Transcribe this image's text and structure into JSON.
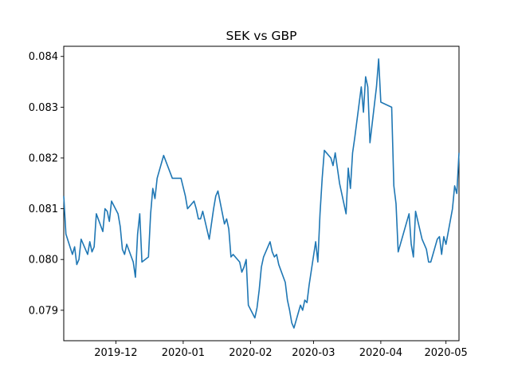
{
  "chart_data": {
    "type": "line",
    "title": "SEK vs GBP",
    "xlabel": "",
    "ylabel": "",
    "x_range": [
      "2019-11-07",
      "2020-05-07"
    ],
    "ylim": [
      0.0784,
      0.0842
    ],
    "grid": false,
    "line_color": "#1f77b4",
    "x_ticks": [
      {
        "date": "2019-12-01",
        "label": "2019-12"
      },
      {
        "date": "2020-01-01",
        "label": "2020-01"
      },
      {
        "date": "2020-02-01",
        "label": "2020-02"
      },
      {
        "date": "2020-03-01",
        "label": "2020-03"
      },
      {
        "date": "2020-04-01",
        "label": "2020-04"
      },
      {
        "date": "2020-05-01",
        "label": "2020-05"
      }
    ],
    "y_ticks": [
      {
        "value": 0.079,
        "label": "0.079"
      },
      {
        "value": 0.08,
        "label": "0.080"
      },
      {
        "value": 0.081,
        "label": "0.081"
      },
      {
        "value": 0.082,
        "label": "0.082"
      },
      {
        "value": 0.083,
        "label": "0.083"
      },
      {
        "value": 0.084,
        "label": "0.084"
      }
    ],
    "series": [
      {
        "name": "",
        "x": [
          "2019-11-07",
          "2019-11-08",
          "2019-11-11",
          "2019-11-12",
          "2019-11-13",
          "2019-11-14",
          "2019-11-15",
          "2019-11-18",
          "2019-11-19",
          "2019-11-20",
          "2019-11-21",
          "2019-11-22",
          "2019-11-25",
          "2019-11-26",
          "2019-11-27",
          "2019-11-28",
          "2019-11-29",
          "2019-12-02",
          "2019-12-03",
          "2019-12-04",
          "2019-12-05",
          "2019-12-06",
          "2019-12-09",
          "2019-12-10",
          "2019-12-11",
          "2019-12-12",
          "2019-12-13",
          "2019-12-16",
          "2019-12-17",
          "2019-12-18",
          "2019-12-19",
          "2019-12-20",
          "2019-12-23",
          "2019-12-27",
          "2019-12-30",
          "2019-12-31",
          "2020-01-02",
          "2020-01-03",
          "2020-01-06",
          "2020-01-07",
          "2020-01-08",
          "2020-01-09",
          "2020-01-10",
          "2020-01-13",
          "2020-01-14",
          "2020-01-15",
          "2020-01-16",
          "2020-01-17",
          "2020-01-20",
          "2020-01-21",
          "2020-01-22",
          "2020-01-23",
          "2020-01-24",
          "2020-01-27",
          "2020-01-28",
          "2020-01-29",
          "2020-01-30",
          "2020-01-31",
          "2020-02-03",
          "2020-02-04",
          "2020-02-05",
          "2020-02-06",
          "2020-02-07",
          "2020-02-10",
          "2020-02-11",
          "2020-02-12",
          "2020-02-13",
          "2020-02-14",
          "2020-02-17",
          "2020-02-18",
          "2020-02-19",
          "2020-02-20",
          "2020-02-21",
          "2020-02-24",
          "2020-02-25",
          "2020-02-26",
          "2020-02-27",
          "2020-02-28",
          "2020-03-02",
          "2020-03-03",
          "2020-03-04",
          "2020-03-05",
          "2020-03-06",
          "2020-03-09",
          "2020-03-10",
          "2020-03-11",
          "2020-03-12",
          "2020-03-13",
          "2020-03-16",
          "2020-03-17",
          "2020-03-18",
          "2020-03-19",
          "2020-03-20",
          "2020-03-23",
          "2020-03-24",
          "2020-03-25",
          "2020-03-26",
          "2020-03-27",
          "2020-03-30",
          "2020-03-31",
          "2020-04-01",
          "2020-04-06",
          "2020-04-07",
          "2020-04-08",
          "2020-04-09",
          "2020-04-14",
          "2020-04-15",
          "2020-04-16",
          "2020-04-17",
          "2020-04-20",
          "2020-04-21",
          "2020-04-22",
          "2020-04-23",
          "2020-04-24",
          "2020-04-27",
          "2020-04-28",
          "2020-04-29",
          "2020-04-30",
          "2020-05-01",
          "2020-05-04",
          "2020-05-05",
          "2020-05-06",
          "2020-05-07"
        ],
        "y": [
          0.08125,
          0.0805,
          0.0801,
          0.08025,
          0.0799,
          0.08,
          0.0804,
          0.0801,
          0.08035,
          0.08015,
          0.08025,
          0.0809,
          0.08055,
          0.081,
          0.08095,
          0.08075,
          0.08115,
          0.0809,
          0.08065,
          0.0802,
          0.0801,
          0.0803,
          0.07995,
          0.07965,
          0.0805,
          0.0809,
          0.07995,
          0.08005,
          0.0809,
          0.0814,
          0.0812,
          0.0816,
          0.08205,
          0.0816,
          0.0816,
          0.0816,
          0.08125,
          0.081,
          0.08115,
          0.081,
          0.0808,
          0.0808,
          0.08095,
          0.0804,
          0.0807,
          0.081,
          0.08125,
          0.08135,
          0.0807,
          0.0808,
          0.0806,
          0.08005,
          0.0801,
          0.07995,
          0.07975,
          0.07985,
          0.08,
          0.0791,
          0.07885,
          0.07905,
          0.0794,
          0.07985,
          0.08005,
          0.08035,
          0.08015,
          0.08005,
          0.0801,
          0.0799,
          0.07955,
          0.0792,
          0.079,
          0.07875,
          0.07865,
          0.0791,
          0.079,
          0.0792,
          0.07915,
          0.0795,
          0.08035,
          0.07995,
          0.0809,
          0.0816,
          0.08215,
          0.082,
          0.08185,
          0.0821,
          0.0818,
          0.0815,
          0.0809,
          0.0818,
          0.0814,
          0.0821,
          0.0824,
          0.0834,
          0.0829,
          0.0836,
          0.0834,
          0.0823,
          0.0834,
          0.08395,
          0.0831,
          0.083,
          0.08145,
          0.0811,
          0.08015,
          0.0809,
          0.0803,
          0.08005,
          0.08095,
          0.0804,
          0.0803,
          0.0802,
          0.07995,
          0.07995,
          0.0804,
          0.08045,
          0.0801,
          0.08045,
          0.0803,
          0.081,
          0.08145,
          0.0813,
          0.0821
        ]
      }
    ]
  }
}
